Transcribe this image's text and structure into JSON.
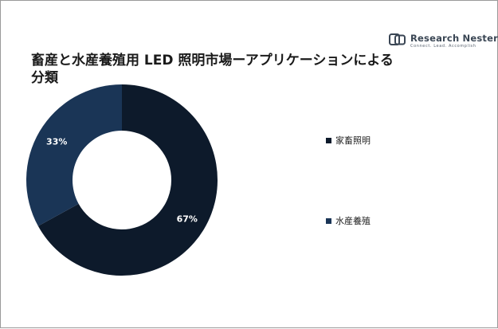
{
  "brand": {
    "name": "Research Nester",
    "tagline": "Connect. Lead. Accomplish"
  },
  "colors": {
    "series_0": "#0d1a2b",
    "series_1": "#1a3556",
    "label_text": "#ffffff"
  },
  "chart_data": {
    "type": "pie",
    "donut": true,
    "title": "畜産と水産養殖用 LED 照明市場ーアプリケーションによる分類",
    "categories": [
      "家畜照明",
      "水産養殖"
    ],
    "values": [
      67,
      33
    ],
    "data_labels": [
      "67%",
      "33%"
    ],
    "legend": "right"
  }
}
